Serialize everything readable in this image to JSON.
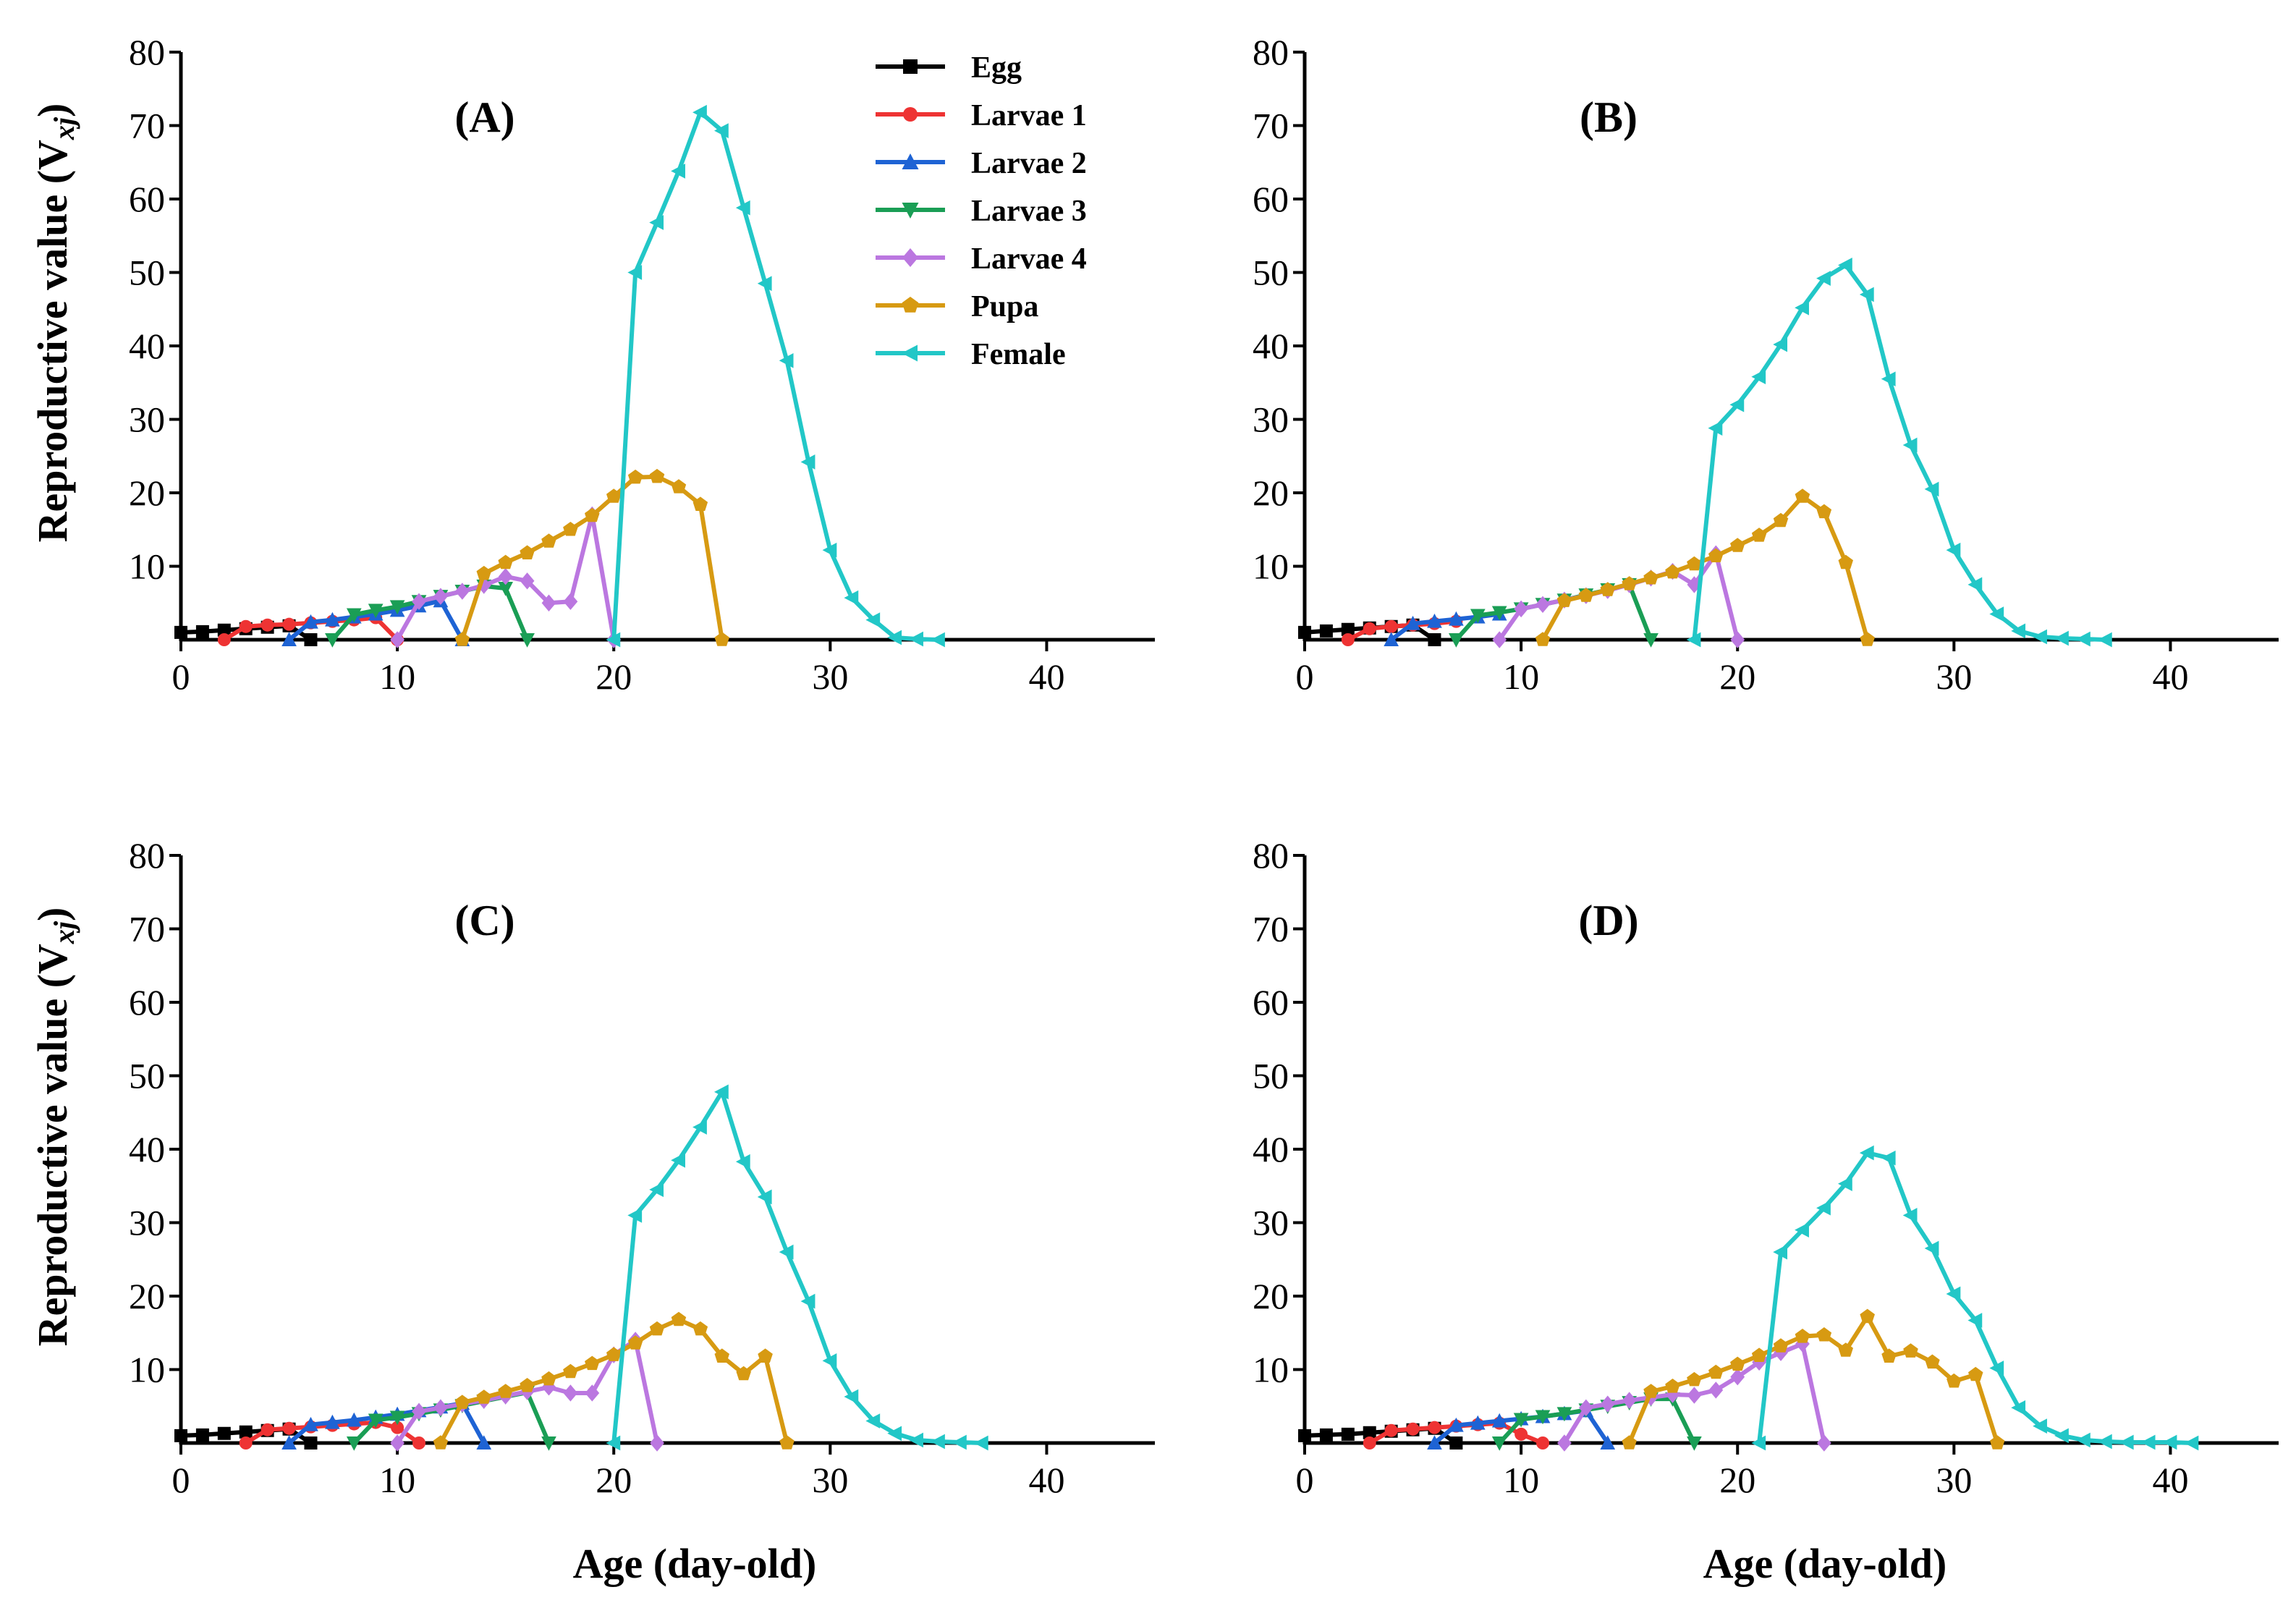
{
  "figure": {
    "ylabel_main": "Reproductive value (V",
    "ylabel_sub": "xj",
    "ylabel_close": ")",
    "xlabel": "Age (day-old)"
  },
  "legend": [
    {
      "name": "Egg",
      "color": "#000000",
      "marker": "square"
    },
    {
      "name": "Larvae 1",
      "color": "#ee3333",
      "marker": "circle"
    },
    {
      "name": "Larvae 2",
      "color": "#1e63d4",
      "marker": "triangle-up"
    },
    {
      "name": "Larvae 3",
      "color": "#1a9e55",
      "marker": "triangle-down"
    },
    {
      "name": "Larvae 4",
      "color": "#bb77e0",
      "marker": "diamond"
    },
    {
      "name": "Pupa",
      "color": "#d79a12",
      "marker": "pentagon"
    },
    {
      "name": "Female",
      "color": "#22c7c7",
      "marker": "triangle-left"
    }
  ],
  "chart_data": [
    {
      "type": "line",
      "panel": "(A)",
      "xlabel": "Age (day-old)",
      "ylabel": "Reproductive value (Vxj)",
      "xlim": [
        0,
        45
      ],
      "ylim": [
        0,
        80
      ],
      "xticks": [
        0,
        10,
        20,
        30,
        40
      ],
      "yticks": [
        10,
        20,
        30,
        40,
        50,
        60,
        70,
        80
      ],
      "series": [
        {
          "name": "Egg",
          "x": [
            0,
            1,
            2,
            3,
            4,
            5,
            6
          ],
          "y": [
            1.0,
            1.1,
            1.3,
            1.5,
            1.7,
            1.9,
            0
          ]
        },
        {
          "name": "Larvae 1",
          "x": [
            2,
            3,
            4,
            5,
            6,
            7,
            8,
            9,
            10
          ],
          "y": [
            0,
            1.8,
            2.0,
            2.1,
            2.3,
            2.5,
            2.7,
            3.0,
            0
          ]
        },
        {
          "name": "Larvae 2",
          "x": [
            5,
            6,
            7,
            8,
            9,
            10,
            11,
            12,
            13
          ],
          "y": [
            0,
            2.4,
            2.7,
            3.1,
            3.5,
            4.0,
            4.6,
            5.3,
            0
          ]
        },
        {
          "name": "Larvae 3",
          "x": [
            7,
            8,
            9,
            10,
            11,
            12,
            13,
            14,
            15,
            16
          ],
          "y": [
            0,
            3.4,
            4.0,
            4.5,
            5.2,
            5.9,
            6.6,
            7.3,
            7.0,
            0
          ]
        },
        {
          "name": "Larvae 4",
          "x": [
            10,
            11,
            12,
            13,
            14,
            15,
            16,
            17,
            18,
            19,
            20
          ],
          "y": [
            0,
            5.2,
            5.9,
            6.6,
            7.4,
            8.6,
            8.0,
            5.0,
            5.2,
            17.0,
            0
          ]
        },
        {
          "name": "Pupa",
          "x": [
            13,
            14,
            15,
            16,
            17,
            18,
            19,
            20,
            21,
            22,
            23,
            24,
            25
          ],
          "y": [
            0,
            9.0,
            10.5,
            11.8,
            13.4,
            15.0,
            16.9,
            19.5,
            22.1,
            22.2,
            20.8,
            18.4,
            0
          ]
        },
        {
          "name": "Female",
          "x": [
            20,
            21,
            22,
            23,
            24,
            25,
            26,
            27,
            28,
            29,
            30,
            31,
            32,
            33,
            34,
            35
          ],
          "y": [
            0,
            50.0,
            56.8,
            63.8,
            71.8,
            69.3,
            58.8,
            48.5,
            38.0,
            24.2,
            12.2,
            5.7,
            2.7,
            0.3,
            0.1,
            0
          ]
        }
      ]
    },
    {
      "type": "line",
      "panel": "(B)",
      "xlabel": "Age (day-old)",
      "ylabel": "Reproductive value (Vxj)",
      "xlim": [
        0,
        45
      ],
      "ylim": [
        0,
        80
      ],
      "xticks": [
        0,
        10,
        20,
        30,
        40
      ],
      "yticks": [
        10,
        20,
        30,
        40,
        50,
        60,
        70,
        80
      ],
      "series": [
        {
          "name": "Egg",
          "x": [
            0,
            1,
            2,
            3,
            4,
            5,
            6
          ],
          "y": [
            1.0,
            1.2,
            1.4,
            1.6,
            1.8,
            2.0,
            0
          ]
        },
        {
          "name": "Larvae 1",
          "x": [
            2,
            3,
            4,
            5,
            6,
            7
          ],
          "y": [
            0,
            1.5,
            1.8,
            2.0,
            2.2,
            2.5
          ]
        },
        {
          "name": "Larvae 2",
          "x": [
            4,
            5,
            6,
            7,
            8,
            9
          ],
          "y": [
            0,
            2.2,
            2.5,
            2.8,
            3.1,
            3.5
          ]
        },
        {
          "name": "Larvae 3",
          "x": [
            7,
            8,
            9,
            10,
            11,
            12,
            13,
            14,
            15,
            16
          ],
          "y": [
            0,
            3.3,
            3.7,
            4.2,
            4.8,
            5.4,
            6.1,
            6.8,
            7.5,
            0
          ]
        },
        {
          "name": "Larvae 4",
          "x": [
            9,
            10,
            11,
            12,
            13,
            14,
            15,
            16,
            17,
            18,
            19,
            20
          ],
          "y": [
            0,
            4.2,
            4.8,
            5.4,
            6.0,
            6.7,
            7.5,
            8.4,
            9.3,
            7.5,
            11.7,
            0
          ]
        },
        {
          "name": "Pupa",
          "x": [
            11,
            12,
            13,
            14,
            15,
            16,
            17,
            18,
            19,
            20,
            21,
            22,
            23,
            24,
            25,
            26
          ],
          "y": [
            0,
            5.3,
            6.0,
            6.8,
            7.6,
            8.4,
            9.2,
            10.3,
            11.4,
            12.8,
            14.2,
            16.2,
            19.5,
            17.4,
            10.5,
            0
          ]
        },
        {
          "name": "Female",
          "x": [
            18,
            19,
            20,
            21,
            22,
            23,
            24,
            25,
            26,
            27,
            28,
            29,
            30,
            31,
            32,
            33,
            34,
            35,
            36,
            37
          ],
          "y": [
            0,
            28.8,
            32.0,
            35.8,
            40.2,
            45.2,
            49.2,
            51.0,
            47.0,
            35.5,
            26.5,
            20.5,
            12.2,
            7.5,
            3.5,
            1.2,
            0.4,
            0.2,
            0.1,
            0
          ]
        }
      ]
    },
    {
      "type": "line",
      "panel": "(C)",
      "xlabel": "Age (day-old)",
      "ylabel": "Reproductive value (Vxj)",
      "xlim": [
        0,
        45
      ],
      "ylim": [
        0,
        80
      ],
      "xticks": [
        0,
        10,
        20,
        30,
        40
      ],
      "yticks": [
        10,
        20,
        30,
        40,
        50,
        60,
        70,
        80
      ],
      "series": [
        {
          "name": "Egg",
          "x": [
            0,
            1,
            2,
            3,
            4,
            5,
            6
          ],
          "y": [
            1.0,
            1.1,
            1.3,
            1.5,
            1.7,
            1.9,
            0
          ]
        },
        {
          "name": "Larvae 1",
          "x": [
            3,
            4,
            5,
            6,
            7,
            8,
            9,
            10,
            11
          ],
          "y": [
            0,
            1.8,
            2.0,
            2.2,
            2.4,
            2.6,
            2.8,
            2.1,
            0
          ]
        },
        {
          "name": "Larvae 2",
          "x": [
            5,
            6,
            7,
            8,
            9,
            10,
            11,
            12,
            13,
            14
          ],
          "y": [
            0,
            2.5,
            2.8,
            3.1,
            3.5,
            3.9,
            4.4,
            4.9,
            5.4,
            0
          ]
        },
        {
          "name": "Larvae 3",
          "x": [
            8,
            9,
            10,
            11,
            12,
            13,
            14,
            15,
            16,
            17
          ],
          "y": [
            0,
            3.1,
            3.5,
            4.0,
            4.5,
            5.1,
            5.7,
            6.3,
            6.9,
            0
          ]
        },
        {
          "name": "Larvae 4",
          "x": [
            10,
            11,
            12,
            13,
            14,
            15,
            16,
            17,
            18,
            19,
            20,
            21,
            22
          ],
          "y": [
            0,
            4.3,
            4.8,
            5.3,
            5.8,
            6.4,
            7.0,
            7.6,
            6.8,
            6.8,
            12.0,
            14.0,
            0
          ]
        },
        {
          "name": "Pupa",
          "x": [
            12,
            13,
            14,
            15,
            16,
            17,
            18,
            19,
            20,
            21,
            22,
            23,
            24,
            25,
            26,
            27,
            28
          ],
          "y": [
            0,
            5.5,
            6.2,
            7.0,
            7.8,
            8.7,
            9.7,
            10.8,
            12.0,
            13.6,
            15.5,
            16.8,
            15.5,
            11.8,
            9.4,
            11.8,
            0
          ]
        },
        {
          "name": "Female",
          "x": [
            20,
            21,
            22,
            23,
            24,
            25,
            26,
            27,
            28,
            29,
            30,
            31,
            32,
            33,
            34,
            35,
            36,
            37
          ],
          "y": [
            0,
            31.0,
            34.5,
            38.5,
            43.0,
            47.8,
            38.3,
            33.5,
            26.0,
            19.3,
            11.2,
            6.3,
            3.0,
            1.3,
            0.4,
            0.2,
            0.1,
            0
          ]
        }
      ]
    },
    {
      "type": "line",
      "panel": "(D)",
      "xlabel": "Age (day-old)",
      "ylabel": "Reproductive value (Vxj)",
      "xlim": [
        0,
        45
      ],
      "ylim": [
        0,
        80
      ],
      "xticks": [
        0,
        10,
        20,
        30,
        40
      ],
      "yticks": [
        10,
        20,
        30,
        40,
        50,
        60,
        70,
        80
      ],
      "series": [
        {
          "name": "Egg",
          "x": [
            0,
            1,
            2,
            3,
            4,
            5,
            6,
            7
          ],
          "y": [
            1.0,
            1.1,
            1.2,
            1.4,
            1.6,
            1.8,
            2.0,
            0
          ]
        },
        {
          "name": "Larvae 1",
          "x": [
            3,
            4,
            5,
            6,
            7,
            8,
            9,
            10,
            11
          ],
          "y": [
            0,
            1.7,
            1.9,
            2.1,
            2.3,
            2.5,
            2.7,
            1.2,
            0
          ]
        },
        {
          "name": "Larvae 2",
          "x": [
            6,
            7,
            8,
            9,
            10,
            11,
            12,
            13,
            14
          ],
          "y": [
            0,
            2.4,
            2.7,
            3.0,
            3.3,
            3.6,
            4.0,
            4.4,
            0
          ]
        },
        {
          "name": "Larvae 3",
          "x": [
            9,
            10,
            11,
            12,
            13,
            14,
            15,
            16,
            17,
            18
          ],
          "y": [
            0,
            3.2,
            3.6,
            4.0,
            4.5,
            5.0,
            5.5,
            6.0,
            6.0,
            0
          ]
        },
        {
          "name": "Larvae 4",
          "x": [
            12,
            13,
            14,
            15,
            16,
            17,
            18,
            19,
            20,
            21,
            22,
            23,
            24
          ],
          "y": [
            0,
            4.8,
            5.3,
            5.8,
            6.2,
            6.6,
            6.5,
            7.2,
            9.0,
            11.0,
            12.3,
            13.5,
            0
          ]
        },
        {
          "name": "Pupa",
          "x": [
            15,
            16,
            17,
            18,
            19,
            20,
            21,
            22,
            23,
            24,
            25,
            26,
            27,
            28,
            29,
            30,
            31,
            32
          ],
          "y": [
            0,
            7.0,
            7.7,
            8.6,
            9.6,
            10.7,
            11.9,
            13.2,
            14.5,
            14.7,
            12.6,
            17.2,
            11.8,
            12.5,
            11.0,
            8.4,
            9.3,
            0
          ]
        },
        {
          "name": "Female",
          "x": [
            21,
            22,
            23,
            24,
            25,
            26,
            27,
            28,
            29,
            30,
            31,
            32,
            33,
            34,
            35,
            36,
            37,
            38,
            39,
            40,
            41
          ],
          "y": [
            0,
            26.0,
            29.0,
            32.0,
            35.3,
            39.5,
            38.8,
            31.0,
            26.5,
            20.3,
            16.7,
            10.2,
            4.8,
            2.3,
            1.0,
            0.4,
            0.2,
            0.1,
            0.1,
            0.1,
            0
          ]
        }
      ]
    }
  ]
}
